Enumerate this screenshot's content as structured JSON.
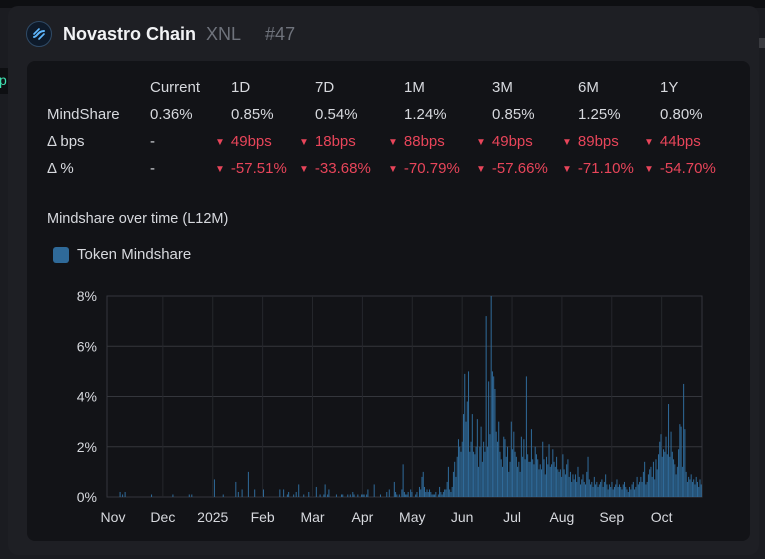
{
  "background": {
    "left_fragment": "p"
  },
  "header": {
    "title": "Novastro Chain",
    "ticker": "XNL",
    "rank": "#47",
    "logo_icon": "novastro-logo-icon"
  },
  "stats": {
    "columns": [
      "Current",
      "1D",
      "7D",
      "1M",
      "3M",
      "6M",
      "1Y"
    ],
    "rows": [
      {
        "label": "MindShare",
        "values": [
          "0.36%",
          "0.85%",
          "0.54%",
          "1.24%",
          "0.85%",
          "1.25%",
          "0.80%"
        ],
        "negative": [
          false,
          false,
          false,
          false,
          false,
          false,
          false
        ]
      },
      {
        "label": "Δ bps",
        "values": [
          "-",
          "49bps",
          "18bps",
          "88bps",
          "49bps",
          "89bps",
          "44bps"
        ],
        "negative": [
          false,
          true,
          true,
          true,
          true,
          true,
          true
        ]
      },
      {
        "label": "Δ %",
        "values": [
          "-",
          "-57.51%",
          "-33.68%",
          "-70.79%",
          "-57.66%",
          "-71.10%",
          "-54.70%"
        ],
        "negative": [
          false,
          true,
          true,
          true,
          true,
          true,
          true
        ]
      }
    ],
    "negative_color": "#e8455a"
  },
  "chart": {
    "title": "Mindshare over time (L12M)"
  },
  "chart_data": {
    "type": "bar",
    "title": "Mindshare over time (L12M)",
    "legend": [
      "Token Mindshare"
    ],
    "series_color": "#2f6a99",
    "ylim": [
      0,
      8
    ],
    "yticks": [
      "0%",
      "2%",
      "4%",
      "6%",
      "8%"
    ],
    "xticks": [
      "Nov",
      "Dec",
      "2025",
      "Feb",
      "Mar",
      "Apr",
      "May",
      "Jun",
      "Jul",
      "Aug",
      "Sep",
      "Oct"
    ],
    "values": [
      0,
      0,
      0,
      0,
      0,
      0,
      0,
      0,
      0,
      0,
      0.2,
      0,
      0.1,
      0,
      0.2,
      0,
      0,
      0,
      0,
      0,
      0,
      0,
      0,
      0,
      0,
      0,
      0,
      0,
      0,
      0,
      0,
      0,
      0,
      0,
      0,
      0.1,
      0,
      0,
      0,
      0,
      0,
      0,
      0,
      0,
      0,
      0,
      0,
      0,
      0,
      0,
      0,
      0,
      0.1,
      0,
      0,
      0,
      0,
      0,
      0,
      0,
      0,
      0,
      0,
      0,
      0,
      0.1,
      0,
      0.1,
      0,
      0,
      0,
      0,
      0,
      0,
      0,
      0,
      0,
      0,
      0,
      0,
      0,
      0,
      0,
      0,
      0,
      0.7,
      0,
      0,
      0,
      0,
      0,
      0,
      0.1,
      0,
      0,
      0,
      0,
      0,
      0,
      0,
      0,
      0,
      0.6,
      0,
      0.2,
      0,
      0,
      0.3,
      0,
      0,
      0,
      0,
      1.0,
      0,
      0,
      0,
      0,
      0.3,
      0,
      0,
      0,
      0,
      0,
      0,
      0.3,
      0,
      0,
      0,
      0,
      0,
      0,
      0,
      0,
      0,
      0,
      0,
      0,
      0.3,
      0,
      0,
      0.3,
      0,
      0,
      0.1,
      0.2,
      0,
      0,
      0,
      0.1,
      0,
      0.2,
      0,
      0.5,
      0,
      0,
      0,
      0.1,
      0,
      0,
      0,
      0.2,
      0,
      0,
      0,
      0,
      0,
      0.4,
      0,
      0,
      0.1,
      0,
      0,
      0.1,
      0.5,
      0,
      0.1,
      0.3,
      0,
      0,
      0,
      0,
      0,
      0.1,
      0,
      0,
      0,
      0.1,
      0.1,
      0,
      0,
      0,
      0.1,
      0,
      0.1,
      0,
      0.2,
      0.1,
      0,
      0,
      0.1,
      0,
      0,
      0.1,
      0.1,
      0.1,
      0,
      0.1,
      0.3,
      0,
      0,
      0,
      0,
      0.5,
      0,
      0,
      0,
      0,
      0.1,
      0,
      0,
      0,
      0,
      0.2,
      0,
      0.3,
      0,
      0,
      0,
      0.6,
      0.2,
      0.1,
      0,
      0.1,
      0,
      0.3,
      1.3,
      0.2,
      0.1,
      0.1,
      0.2,
      0,
      0.3,
      0.2,
      0,
      0,
      0.1,
      0.2,
      0,
      0.4,
      0.3,
      0.8,
      1.0,
      0.4,
      0.2,
      0.3,
      0.2,
      0.3,
      0.2,
      0.1,
      0.1,
      0.1,
      0.2,
      0,
      0.1,
      0.4,
      0.2,
      0.1,
      0.2,
      0.3,
      0.3,
      0.6,
      1.2,
      0.3,
      0.2,
      0.4,
      1.0,
      1.4,
      0.8,
      1.6,
      2.3,
      2.0,
      1.8,
      2.2,
      3.3,
      4.9,
      3.0,
      3.8,
      5.0,
      1.8,
      2.2,
      3.3,
      1.8,
      1.7,
      2.0,
      3.1,
      1.2,
      2.0,
      2.8,
      1.4,
      2.2,
      1.8,
      7.2,
      2.0,
      4.6,
      2.5,
      8.0,
      5.0,
      4.8,
      4.3,
      2.6,
      2.2,
      3.0,
      1.8,
      1.5,
      1.2,
      2.4,
      2.3,
      1.6,
      2.0,
      1.0,
      1.4,
      3.0,
      1.9,
      2.6,
      1.8,
      1.6,
      1.2,
      1.4,
      1.0,
      2.4,
      1.6,
      2.3,
      1.5,
      4.8,
      1.7,
      1.4,
      1.4,
      2.7,
      1.5,
      1.3,
      2.0,
      1.7,
      1.5,
      1.1,
      1.3,
      1.1,
      2.2,
      1.5,
      0.9,
      1.6,
      1.3,
      2.1,
      1.2,
      1.3,
      1.9,
      1.4,
      1.2,
      1.6,
      1.1,
      1.0,
      1.1,
      0.8,
      1.7,
      1.1,
      0.9,
      1.3,
      1.5,
      0.8,
      1.0,
      0.6,
      0.9,
      0.7,
      0.9,
      0.6,
      1.2,
      0.8,
      0.5,
      0.7,
      0.9,
      0.6,
      0.5,
      1.0,
      1.6,
      0.7,
      0.5,
      0.6,
      0.4,
      0.8,
      0.5,
      0.6,
      0.4,
      0.5,
      0.6,
      0.7,
      0.4,
      0.6,
      0.9,
      0.5,
      0.3,
      0.5,
      0.4,
      0.6,
      0.3,
      0.4,
      0.5,
      0.7,
      0.4,
      0.5,
      0.4,
      0.3,
      0.5,
      0.6,
      0.4,
      0.3,
      0.2,
      0.4,
      0.3,
      0.5,
      0.6,
      0.3,
      0.4,
      0.8,
      0.5,
      0.6,
      0.8,
      0.6,
      1.0,
      1.4,
      0.5,
      0.6,
      0.9,
      1.1,
      1.2,
      0.8,
      1.4,
      0.7,
      1.5,
      1.1,
      1.7,
      2.2,
      2.5,
      1.6,
      1.9,
      1.8,
      2.4,
      1.7,
      3.7,
      1.6,
      2.6,
      1.8,
      1.5,
      1.3,
      0.9,
      1.2,
      1.9,
      2.9,
      2.8,
      1.2,
      4.5,
      2.7,
      1.0,
      0.6,
      0.8,
      0.7,
      0.9,
      0.6,
      0.7,
      0.5,
      0.8,
      0.6,
      0.4,
      0.7,
      0.5
    ]
  }
}
